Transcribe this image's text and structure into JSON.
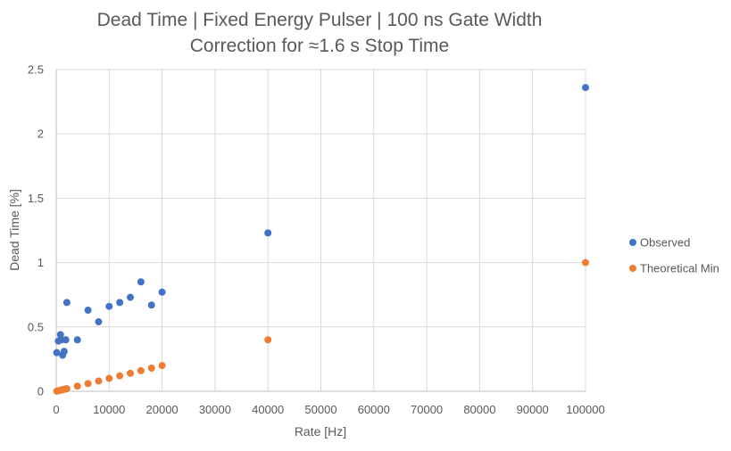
{
  "chart_data": {
    "type": "scatter",
    "title_lines": [
      "Dead Time | Fixed Energy Pulser | 100 ns Gate Width",
      "Correction for ≈1.6 s Stop Time"
    ],
    "xlabel": "Rate [Hz]",
    "ylabel": "Dead Time [%]",
    "xlim": [
      0,
      100000
    ],
    "ylim": [
      0,
      2.5
    ],
    "xticks": [
      0,
      10000,
      20000,
      30000,
      40000,
      50000,
      60000,
      70000,
      80000,
      90000,
      100000
    ],
    "yticks": [
      0,
      0.5,
      1,
      1.5,
      2,
      2.5
    ],
    "grid": true,
    "legend_position": "right",
    "series": [
      {
        "name": "Observed",
        "color": "#4472C4",
        "points": [
          [
            100,
            0.3
          ],
          [
            400,
            0.39
          ],
          [
            800,
            0.44
          ],
          [
            1000,
            0.4
          ],
          [
            1200,
            0.28
          ],
          [
            1500,
            0.31
          ],
          [
            1800,
            0.4
          ],
          [
            2000,
            0.69
          ],
          [
            4000,
            0.4
          ],
          [
            6000,
            0.63
          ],
          [
            8000,
            0.54
          ],
          [
            10000,
            0.66
          ],
          [
            12000,
            0.69
          ],
          [
            14000,
            0.73
          ],
          [
            16000,
            0.85
          ],
          [
            18000,
            0.67
          ],
          [
            20000,
            0.77
          ],
          [
            40000,
            1.23
          ],
          [
            100000,
            2.36
          ]
        ]
      },
      {
        "name": "Theoretical Min",
        "color": "#ED7D31",
        "points": [
          [
            100,
            0.001
          ],
          [
            400,
            0.004
          ],
          [
            800,
            0.008
          ],
          [
            1000,
            0.01
          ],
          [
            1200,
            0.012
          ],
          [
            1500,
            0.015
          ],
          [
            1800,
            0.018
          ],
          [
            2000,
            0.02
          ],
          [
            4000,
            0.04
          ],
          [
            6000,
            0.06
          ],
          [
            8000,
            0.08
          ],
          [
            10000,
            0.1
          ],
          [
            12000,
            0.12
          ],
          [
            14000,
            0.14
          ],
          [
            16000,
            0.16
          ],
          [
            18000,
            0.18
          ],
          [
            20000,
            0.2
          ],
          [
            40000,
            0.4
          ],
          [
            100000,
            1.0
          ]
        ]
      }
    ]
  }
}
